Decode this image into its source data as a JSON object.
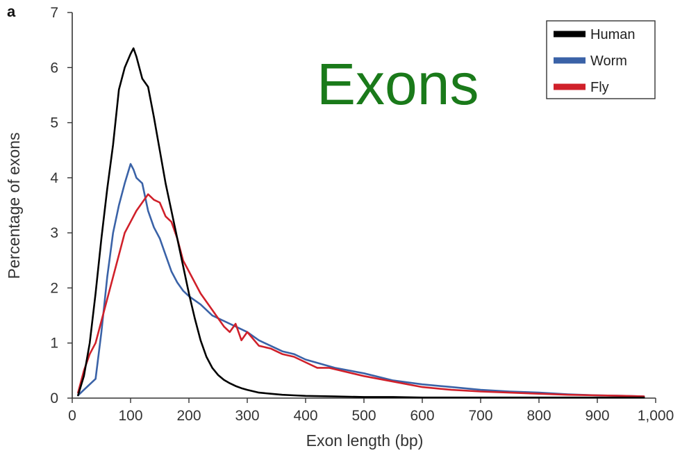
{
  "panel_label": "a",
  "overlay_title": "Exons",
  "chart_data": {
    "type": "line",
    "title": "",
    "xlabel": "Exon length (bp)",
    "ylabel": "Percentage of exons",
    "xlim": [
      0,
      1000
    ],
    "ylim": [
      0,
      7
    ],
    "x_ticks": [
      0,
      100,
      200,
      300,
      400,
      500,
      600,
      700,
      800,
      900,
      1000
    ],
    "x_tick_labels": [
      "0",
      "100",
      "200",
      "300",
      "400",
      "500",
      "600",
      "700",
      "800",
      "900",
      "1,000"
    ],
    "y_ticks": [
      0,
      1,
      2,
      3,
      4,
      5,
      6,
      7
    ],
    "y_tick_labels": [
      "0",
      "1",
      "2",
      "3",
      "4",
      "5",
      "6",
      "7"
    ],
    "grid": false,
    "legend_position": "top-right",
    "series": [
      {
        "name": "Human",
        "color": "#000000",
        "x": [
          10,
          20,
          30,
          40,
          50,
          60,
          70,
          80,
          90,
          100,
          105,
          110,
          120,
          130,
          140,
          150,
          160,
          170,
          180,
          190,
          200,
          210,
          220,
          230,
          240,
          250,
          260,
          270,
          280,
          290,
          300,
          320,
          340,
          360,
          380,
          400,
          450,
          500,
          550,
          600,
          700,
          800,
          900,
          980
        ],
        "y": [
          0.05,
          0.4,
          1.0,
          1.9,
          2.9,
          3.8,
          4.6,
          5.6,
          6.0,
          6.25,
          6.35,
          6.2,
          5.8,
          5.65,
          5.1,
          4.5,
          3.9,
          3.4,
          2.9,
          2.4,
          1.9,
          1.45,
          1.05,
          0.75,
          0.55,
          0.42,
          0.33,
          0.27,
          0.22,
          0.18,
          0.15,
          0.1,
          0.08,
          0.06,
          0.05,
          0.04,
          0.03,
          0.02,
          0.02,
          0.01,
          0.01,
          0.01,
          0.01,
          0.01
        ]
      },
      {
        "name": "Worm",
        "color": "#3a62a7",
        "x": [
          10,
          20,
          30,
          40,
          50,
          60,
          70,
          80,
          90,
          100,
          105,
          110,
          120,
          130,
          140,
          150,
          160,
          170,
          180,
          190,
          200,
          220,
          240,
          260,
          280,
          300,
          320,
          340,
          360,
          380,
          400,
          450,
          500,
          550,
          600,
          650,
          700,
          750,
          800,
          850,
          900,
          950,
          980
        ],
        "y": [
          0.05,
          0.15,
          0.25,
          0.35,
          1.2,
          2.2,
          3.0,
          3.5,
          3.9,
          4.25,
          4.15,
          4.0,
          3.9,
          3.4,
          3.1,
          2.9,
          2.6,
          2.3,
          2.1,
          1.95,
          1.85,
          1.7,
          1.5,
          1.4,
          1.3,
          1.2,
          1.05,
          0.95,
          0.85,
          0.8,
          0.7,
          0.55,
          0.45,
          0.32,
          0.25,
          0.2,
          0.15,
          0.12,
          0.1,
          0.07,
          0.05,
          0.04,
          0.03
        ]
      },
      {
        "name": "Fly",
        "color": "#d0202a",
        "x": [
          10,
          20,
          30,
          40,
          50,
          60,
          70,
          80,
          90,
          100,
          110,
          120,
          130,
          140,
          150,
          160,
          170,
          180,
          190,
          200,
          210,
          220,
          230,
          240,
          250,
          260,
          270,
          280,
          290,
          300,
          320,
          340,
          360,
          380,
          400,
          420,
          440,
          460,
          480,
          500,
          550,
          600,
          650,
          700,
          750,
          800,
          850,
          900,
          950,
          980
        ],
        "y": [
          0.1,
          0.5,
          0.8,
          1.0,
          1.4,
          1.8,
          2.2,
          2.6,
          3.0,
          3.2,
          3.4,
          3.55,
          3.7,
          3.6,
          3.55,
          3.3,
          3.2,
          2.9,
          2.5,
          2.3,
          2.1,
          1.9,
          1.75,
          1.6,
          1.45,
          1.3,
          1.2,
          1.35,
          1.05,
          1.2,
          0.95,
          0.9,
          0.8,
          0.75,
          0.65,
          0.55,
          0.55,
          0.5,
          0.45,
          0.4,
          0.3,
          0.2,
          0.15,
          0.12,
          0.1,
          0.08,
          0.06,
          0.05,
          0.04,
          0.03
        ]
      }
    ]
  }
}
